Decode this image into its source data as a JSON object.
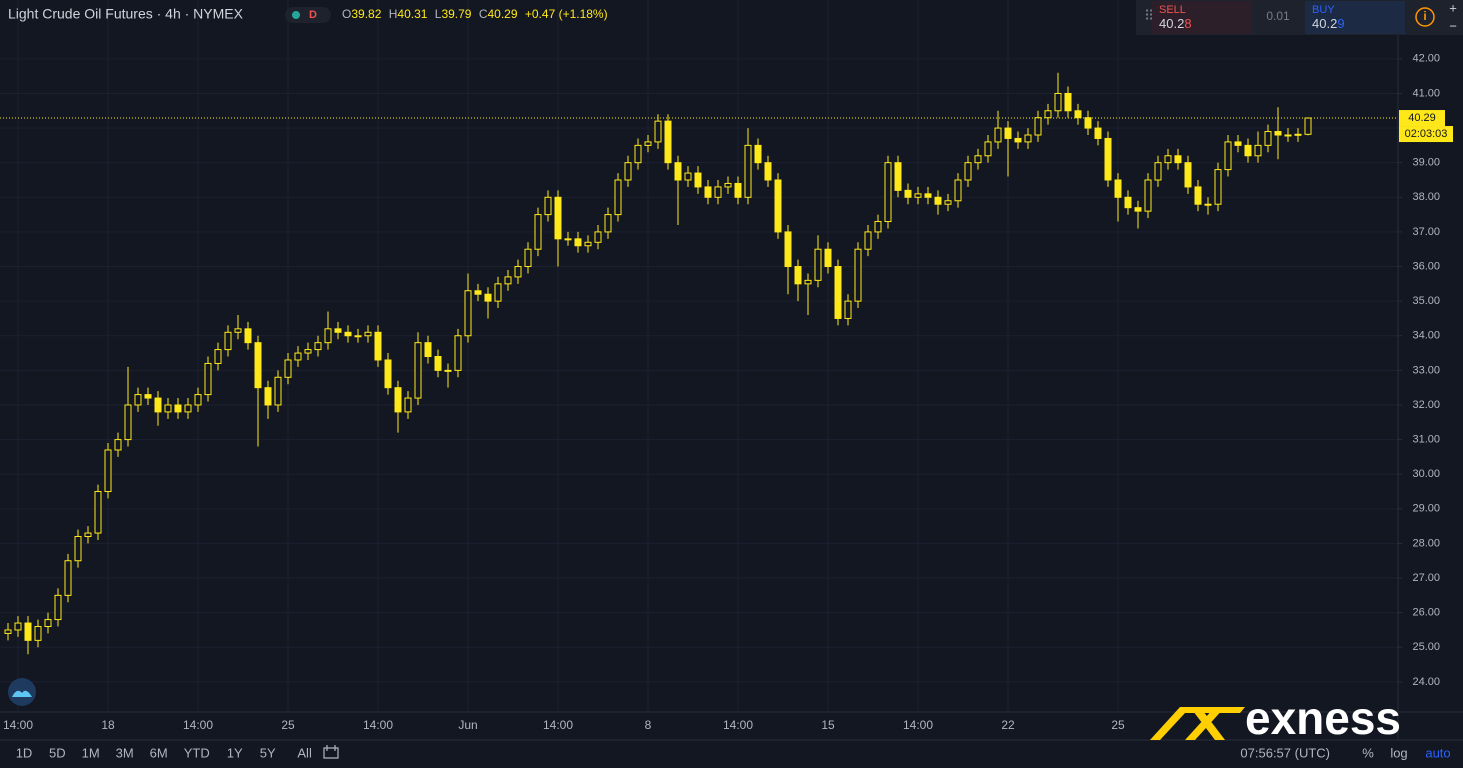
{
  "chart_data": {
    "type": "candlestick",
    "title": "Light Crude Oil Futures · 4h · NYMEX",
    "color": "#ffe81a",
    "grid": true,
    "ylim": [
      23.13,
      43.7
    ],
    "yticks": [
      {
        "value": 24,
        "label": "24.00"
      },
      {
        "value": 25,
        "label": "25.00"
      },
      {
        "value": 26,
        "label": "26.00"
      },
      {
        "value": 27,
        "label": "27.00"
      },
      {
        "value": 28,
        "label": "28.00"
      },
      {
        "value": 29,
        "label": "29.00"
      },
      {
        "value": 30,
        "label": "30.00"
      },
      {
        "value": 31,
        "label": "31.00"
      },
      {
        "value": 32,
        "label": "32.00"
      },
      {
        "value": 33,
        "label": "33.00"
      },
      {
        "value": 34,
        "label": "34.00"
      },
      {
        "value": 35,
        "label": "35.00"
      },
      {
        "value": 36,
        "label": "36.00"
      },
      {
        "value": 37,
        "label": "37.00"
      },
      {
        "value": 38,
        "label": "38.00"
      },
      {
        "value": 39,
        "label": "39.00"
      },
      {
        "value": 40,
        "label": "40.00"
      },
      {
        "value": 41,
        "label": "41.00"
      },
      {
        "value": 42,
        "label": "42.00"
      }
    ],
    "categories": [
      null,
      "14:00",
      null,
      null,
      null,
      null,
      null,
      null,
      null,
      null,
      "18",
      null,
      null,
      null,
      null,
      null,
      null,
      null,
      null,
      "14:00",
      null,
      null,
      null,
      null,
      null,
      null,
      null,
      null,
      "25",
      null,
      null,
      null,
      null,
      null,
      null,
      null,
      null,
      "14:00",
      null,
      null,
      null,
      null,
      null,
      null,
      null,
      null,
      "Jun",
      null,
      null,
      null,
      null,
      null,
      null,
      null,
      null,
      "14:00",
      null,
      null,
      null,
      null,
      null,
      null,
      null,
      null,
      "8",
      null,
      null,
      null,
      null,
      null,
      null,
      null,
      null,
      "14:00",
      null,
      null,
      null,
      null,
      null,
      null,
      null,
      null,
      "15",
      null,
      null,
      null,
      null,
      null,
      null,
      null,
      null,
      "14:00",
      null,
      null,
      null,
      null,
      null,
      null,
      null,
      null,
      "22",
      null,
      null,
      null,
      null,
      null,
      null,
      null,
      null,
      null,
      null,
      "25",
      null,
      null,
      null,
      null,
      null,
      null,
      null,
      null,
      null,
      null,
      null,
      null,
      null,
      null,
      null,
      null,
      null,
      null,
      null
    ],
    "open": [
      25.4,
      25.5,
      25.7,
      25.2,
      25.6,
      25.8,
      26.5,
      27.5,
      28.2,
      28.3,
      29.5,
      30.7,
      31,
      32,
      32.3,
      32.2,
      31.8,
      32,
      31.8,
      32,
      32.3,
      33.2,
      33.6,
      34.1,
      34.2,
      33.8,
      32.5,
      32,
      32.8,
      33.3,
      33.5,
      33.6,
      33.8,
      34.2,
      34.1,
      34,
      34,
      34.1,
      33.3,
      32.5,
      31.8,
      32.2,
      33.8,
      33.4,
      33,
      33,
      34,
      35.3,
      35.2,
      35,
      35.5,
      35.7,
      36,
      36.5,
      37.5,
      38,
      36.8,
      36.8,
      36.6,
      36.7,
      37,
      37.5,
      38.5,
      39,
      39.5,
      39.6,
      40.2,
      39,
      38.5,
      38.7,
      38.3,
      38,
      38.3,
      38.4,
      38,
      39.5,
      39,
      38.5,
      37,
      36,
      35.5,
      35.6,
      36.5,
      36,
      34.5,
      35,
      36.5,
      37,
      37.3,
      39,
      38.2,
      38,
      38.1,
      38,
      37.8,
      37.9,
      38.5,
      39,
      39.2,
      39.6,
      40,
      39.7,
      39.6,
      39.8,
      40.3,
      40.5,
      41,
      40.5,
      40.3,
      40,
      39.7,
      38.5,
      38,
      37.7,
      37.6,
      38.5,
      39,
      39.2,
      39,
      38.3,
      37.8,
      37.8,
      38.8,
      39.6,
      39.5,
      39.2,
      39.5,
      39.9,
      39.8,
      39.8,
      39.82
    ],
    "high": [
      25.7,
      25.9,
      25.9,
      25.8,
      26,
      26.7,
      27.7,
      28.4,
      28.5,
      29.7,
      30.9,
      31.2,
      33.1,
      32.5,
      32.5,
      32.4,
      32.2,
      32.2,
      32.2,
      32.5,
      33.4,
      33.8,
      34.3,
      34.6,
      34.4,
      34,
      32.7,
      33,
      33.5,
      33.7,
      33.8,
      34,
      34.7,
      34.4,
      34.3,
      34.2,
      34.3,
      34.3,
      33.5,
      32.7,
      32.4,
      34.1,
      34,
      33.6,
      33.2,
      34.2,
      35.8,
      35.5,
      35.4,
      35.7,
      35.9,
      36.2,
      36.7,
      37.7,
      38.2,
      38.2,
      37,
      37,
      36.9,
      37.2,
      37.7,
      38.7,
      39.2,
      39.7,
      39.8,
      40.4,
      40.4,
      39.2,
      38.9,
      38.9,
      38.5,
      38.5,
      38.6,
      38.6,
      40,
      39.7,
      39.2,
      38.7,
      37.2,
      36.2,
      35.8,
      36.9,
      36.7,
      36.2,
      35.2,
      36.7,
      37.2,
      37.5,
      39.2,
      39.2,
      38.4,
      38.3,
      38.3,
      38.2,
      38.1,
      38.7,
      39.2,
      39.4,
      39.8,
      40.5,
      40.2,
      39.9,
      40,
      40.5,
      40.7,
      41.6,
      41.2,
      40.7,
      40.5,
      40.2,
      39.9,
      38.7,
      38.2,
      37.9,
      38.7,
      39.2,
      39.4,
      39.4,
      39.2,
      38.5,
      38,
      39,
      39.8,
      39.8,
      39.7,
      39.9,
      40.1,
      40.6,
      40,
      40,
      40.31
    ],
    "low": [
      25.2,
      25.3,
      24.8,
      25,
      25.4,
      25.6,
      26.3,
      27.3,
      28,
      28.1,
      29.3,
      30.5,
      30.8,
      31.8,
      32,
      31.4,
      31.6,
      31.6,
      31.6,
      31.8,
      32.1,
      33,
      33.4,
      33.9,
      33.6,
      30.8,
      31.6,
      31.8,
      32.6,
      33.1,
      33.3,
      33.4,
      33.6,
      33.9,
      33.8,
      33.8,
      33.8,
      33.1,
      32.3,
      31.2,
      31.6,
      32,
      33.2,
      32.8,
      32.5,
      32.8,
      33.8,
      35,
      34.5,
      34.8,
      35.3,
      35.5,
      35.8,
      36.3,
      37.3,
      36,
      36.6,
      36.4,
      36.4,
      36.5,
      36.8,
      37.3,
      38.3,
      38.8,
      39.3,
      39.4,
      38.8,
      37.2,
      38.3,
      38.1,
      37.8,
      37.8,
      38.1,
      37.8,
      37.8,
      38.8,
      38.3,
      36.8,
      35.2,
      35,
      34.6,
      35.4,
      35.8,
      34.3,
      34.3,
      34.8,
      36.3,
      36.8,
      37.1,
      38,
      37.8,
      37.8,
      37.8,
      37.5,
      37.6,
      37.7,
      38.3,
      38.8,
      39,
      39.4,
      38.6,
      39.4,
      39.4,
      39.6,
      40.1,
      40.3,
      40.3,
      40.1,
      39.8,
      39.5,
      38.3,
      37.3,
      37.5,
      37.1,
      37.4,
      38.3,
      38.8,
      38.8,
      38.1,
      37.6,
      37.5,
      37.6,
      38.6,
      39.3,
      39,
      39,
      39.3,
      39.1,
      39.6,
      39.6,
      39.79
    ],
    "close": [
      25.5,
      25.7,
      25.2,
      25.6,
      25.8,
      26.5,
      27.5,
      28.2,
      28.3,
      29.5,
      30.7,
      31,
      32,
      32.3,
      32.2,
      31.8,
      32,
      31.8,
      32,
      32.3,
      33.2,
      33.6,
      34.1,
      34.2,
      33.8,
      32.5,
      32,
      32.8,
      33.3,
      33.5,
      33.6,
      33.8,
      34.2,
      34.1,
      34,
      34,
      34.1,
      33.3,
      32.5,
      31.8,
      32.2,
      33.8,
      33.4,
      33,
      33,
      34,
      35.3,
      35.2,
      35,
      35.5,
      35.7,
      36,
      36.5,
      37.5,
      38,
      36.8,
      36.8,
      36.6,
      36.7,
      37,
      37.5,
      38.5,
      39,
      39.5,
      39.6,
      40.2,
      39,
      38.5,
      38.7,
      38.3,
      38,
      38.3,
      38.4,
      38,
      39.5,
      39,
      38.5,
      37,
      36,
      35.5,
      35.6,
      36.5,
      36,
      34.5,
      35,
      36.5,
      37,
      37.3,
      39,
      38.2,
      38,
      38.1,
      38,
      37.8,
      37.9,
      38.5,
      39,
      39.2,
      39.6,
      40,
      39.7,
      39.6,
      39.8,
      40.3,
      40.5,
      41,
      40.5,
      40.3,
      40,
      39.7,
      38.5,
      38,
      37.7,
      37.6,
      38.5,
      39,
      39.2,
      39,
      38.3,
      37.8,
      37.8,
      38.8,
      39.6,
      39.5,
      39.2,
      39.5,
      39.9,
      39.8,
      39.8,
      39.82,
      40.29
    ]
  },
  "ui": {
    "badge": "D",
    "ohlc_letters": [
      "O",
      "H",
      "L",
      "C"
    ],
    "change": "+0.47 (+1.18%)",
    "countdown": "02:03:03",
    "sell": {
      "label": "SELL",
      "main": "40.2",
      "pip": "8"
    },
    "spread": "0.01",
    "buy": {
      "label": "BUY",
      "main": "40.2",
      "pip": "9"
    },
    "zoom": [
      "+",
      "−"
    ],
    "ranges": [
      "1D",
      "5D",
      "1M",
      "3M",
      "6M",
      "YTD",
      "1Y",
      "5Y",
      "All"
    ],
    "clock": "07:56:57 (UTC)",
    "scale_options": [
      "%",
      "log",
      "auto"
    ],
    "brand": "exness"
  }
}
